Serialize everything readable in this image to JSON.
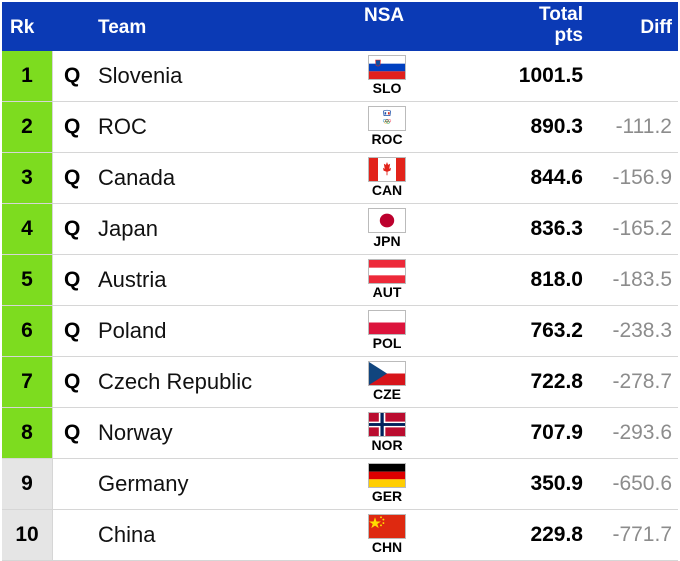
{
  "header": {
    "rk": "Rk",
    "team": "Team",
    "nsa": "NSA",
    "total_line1": "Total",
    "total_line2": "pts",
    "diff": "Diff"
  },
  "colors": {
    "header_bg": "#0b3ab5",
    "qualified_rank_bg": "#7ddc1f",
    "unqualified_rank_bg": "#e5e5e5",
    "diff_text": "#8c8c8c"
  },
  "rows": [
    {
      "rk": "1",
      "q": "Q",
      "team": "Slovenia",
      "code": "SLO",
      "flag": "flag-slovenia-icon",
      "total": "1001.5",
      "diff": "",
      "qualified": true
    },
    {
      "rk": "2",
      "q": "Q",
      "team": "ROC",
      "code": "ROC",
      "flag": "flag-roc-icon",
      "total": "890.3",
      "diff": "-111.2",
      "qualified": true
    },
    {
      "rk": "3",
      "q": "Q",
      "team": "Canada",
      "code": "CAN",
      "flag": "flag-canada-icon",
      "total": "844.6",
      "diff": "-156.9",
      "qualified": true
    },
    {
      "rk": "4",
      "q": "Q",
      "team": "Japan",
      "code": "JPN",
      "flag": "flag-japan-icon",
      "total": "836.3",
      "diff": "-165.2",
      "qualified": true
    },
    {
      "rk": "5",
      "q": "Q",
      "team": "Austria",
      "code": "AUT",
      "flag": "flag-austria-icon",
      "total": "818.0",
      "diff": "-183.5",
      "qualified": true
    },
    {
      "rk": "6",
      "q": "Q",
      "team": "Poland",
      "code": "POL",
      "flag": "flag-poland-icon",
      "total": "763.2",
      "diff": "-238.3",
      "qualified": true
    },
    {
      "rk": "7",
      "q": "Q",
      "team": "Czech Republic",
      "code": "CZE",
      "flag": "flag-czech-icon",
      "total": "722.8",
      "diff": "-278.7",
      "qualified": true
    },
    {
      "rk": "8",
      "q": "Q",
      "team": "Norway",
      "code": "NOR",
      "flag": "flag-norway-icon",
      "total": "707.9",
      "diff": "-293.6",
      "qualified": true
    },
    {
      "rk": "9",
      "q": "",
      "team": "Germany",
      "code": "GER",
      "flag": "flag-germany-icon",
      "total": "350.9",
      "diff": "-650.6",
      "qualified": false
    },
    {
      "rk": "10",
      "q": "",
      "team": "China",
      "code": "CHN",
      "flag": "flag-china-icon",
      "total": "229.8",
      "diff": "-771.7",
      "qualified": false
    }
  ]
}
